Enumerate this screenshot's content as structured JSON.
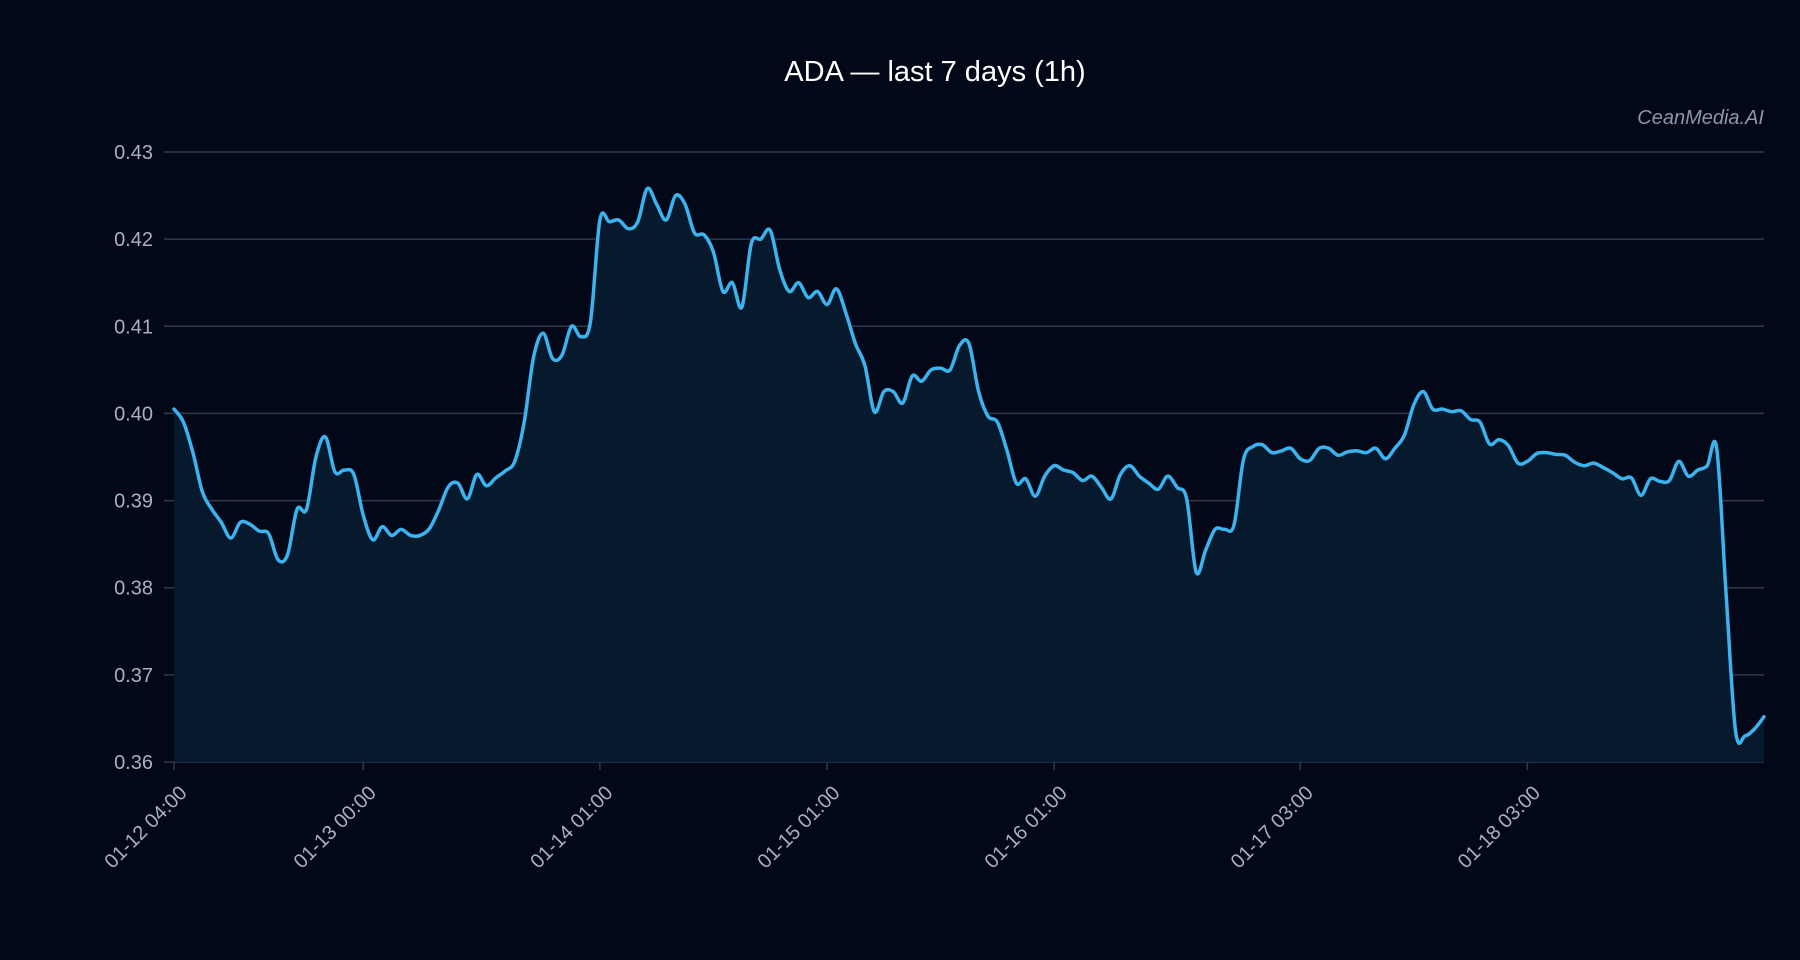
{
  "chart_data": {
    "type": "area",
    "title": "ADA — last 7 days (1h)",
    "watermark": "CeanMedia.AI",
    "xlabel": "",
    "ylabel": "",
    "ylim": [
      0.36,
      0.43
    ],
    "y_ticks": [
      "0.43",
      "0.42",
      "0.41",
      "0.40",
      "0.39",
      "0.38",
      "0.37",
      "0.36"
    ],
    "x_tick_labels": [
      "01-12 04:00",
      "01-13 00:00",
      "01-14 01:00",
      "01-15 01:00",
      "01-16 01:00",
      "01-17 03:00",
      "01-18 03:00"
    ],
    "x_tick_index": [
      0,
      20,
      45,
      69,
      93,
      119,
      143
    ],
    "grid": true,
    "colors": {
      "background": "#020818",
      "line": "#3bb3ee",
      "fill": "#071a2e",
      "grid": "#2d3a4e",
      "text": "#aab0bc",
      "title": "#ffffff"
    },
    "series": [
      {
        "values": [
          0.4005,
          0.399,
          0.3955,
          0.391,
          0.389,
          0.3875,
          0.3857,
          0.3875,
          0.3873,
          0.3865,
          0.3862,
          0.3832,
          0.3838,
          0.389,
          0.389,
          0.395,
          0.3973,
          0.3933,
          0.3935,
          0.393,
          0.3883,
          0.3855,
          0.387,
          0.386,
          0.3867,
          0.386,
          0.386,
          0.3868,
          0.389,
          0.3916,
          0.392,
          0.3902,
          0.393,
          0.3917,
          0.3926,
          0.3934,
          0.3945,
          0.399,
          0.4065,
          0.4092,
          0.4063,
          0.4067,
          0.41,
          0.4088,
          0.4105,
          0.4222,
          0.422,
          0.4222,
          0.4212,
          0.422,
          0.4258,
          0.424,
          0.4222,
          0.425,
          0.424,
          0.4207,
          0.4205,
          0.4185,
          0.414,
          0.415,
          0.4122,
          0.4195,
          0.42,
          0.421,
          0.4165,
          0.414,
          0.415,
          0.4133,
          0.414,
          0.4125,
          0.4143,
          0.4115,
          0.408,
          0.4055,
          0.4002,
          0.4025,
          0.4025,
          0.4012,
          0.4043,
          0.4037,
          0.405,
          0.4052,
          0.405,
          0.4078,
          0.408,
          0.4026,
          0.3997,
          0.399,
          0.3958,
          0.392,
          0.3925,
          0.3905,
          0.3928,
          0.394,
          0.3935,
          0.3932,
          0.3923,
          0.3928,
          0.3915,
          0.3902,
          0.393,
          0.394,
          0.3928,
          0.392,
          0.3913,
          0.3928,
          0.3915,
          0.3902,
          0.3818,
          0.3843,
          0.3867,
          0.3867,
          0.3872,
          0.3947,
          0.3962,
          0.3964,
          0.3955,
          0.3957,
          0.396,
          0.3948,
          0.3946,
          0.396,
          0.396,
          0.3952,
          0.3956,
          0.3957,
          0.3955,
          0.396,
          0.3948,
          0.396,
          0.3975,
          0.401,
          0.4025,
          0.4005,
          0.4005,
          0.4002,
          0.4003,
          0.3993,
          0.399,
          0.3965,
          0.397,
          0.3963,
          0.3943,
          0.3945,
          0.3954,
          0.3955,
          0.3953,
          0.3952,
          0.3944,
          0.394,
          0.3943,
          0.3938,
          0.3932,
          0.3925,
          0.3926,
          0.3906,
          0.3925,
          0.3922,
          0.3923,
          0.3945,
          0.3928,
          0.3935,
          0.394,
          0.396,
          0.3792,
          0.3635,
          0.363,
          0.3638,
          0.3652
        ]
      }
    ]
  }
}
